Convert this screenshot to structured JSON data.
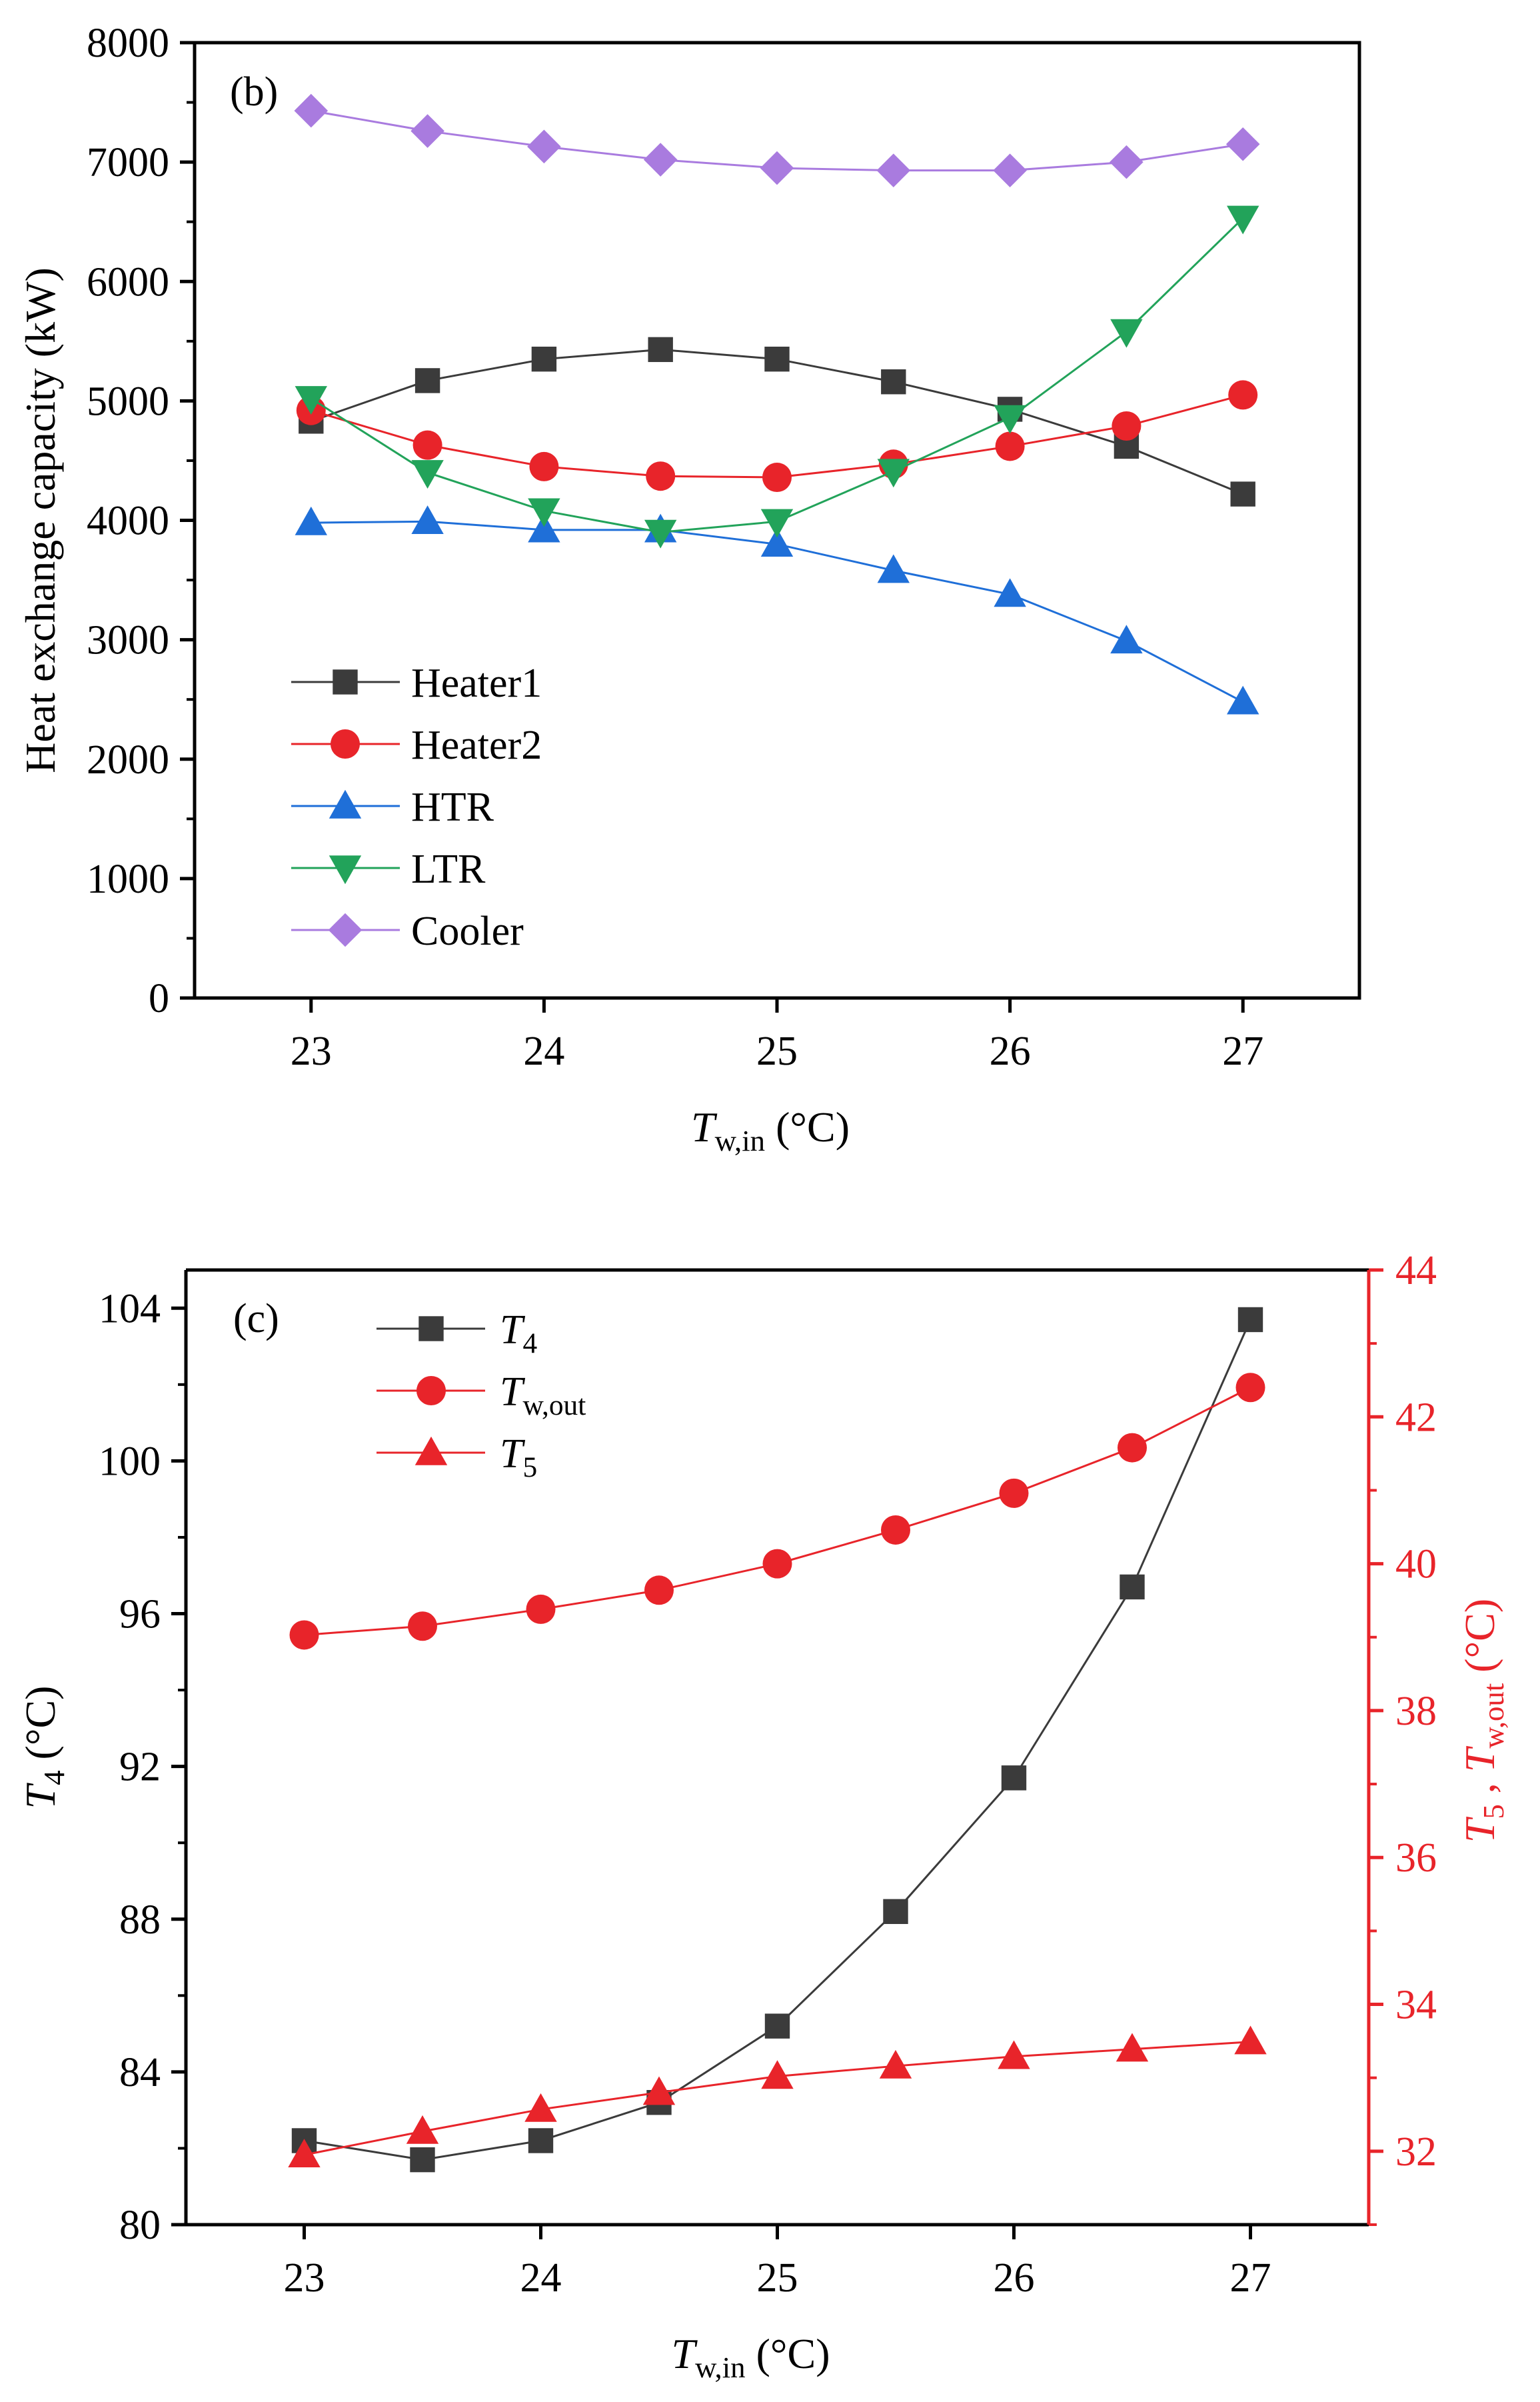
{
  "chart_data": [
    {
      "type": "line",
      "panel_label": "(b)",
      "xlabel_main": "T",
      "xlabel_sub": "w,in",
      "xlabel_unit": " (°C)",
      "ylabel": "Heat exchange capacity (kW)",
      "x": [
        23,
        23.5,
        24,
        24.5,
        25,
        25.5,
        26,
        26.5,
        27
      ],
      "xlim": [
        22.5,
        27.5
      ],
      "ylim": [
        0,
        8000
      ],
      "xticks": [
        23,
        24,
        25,
        26,
        27
      ],
      "yticks": [
        0,
        1000,
        2000,
        3000,
        4000,
        5000,
        6000,
        7000,
        8000
      ],
      "legend_position": "bottom-left",
      "series": [
        {
          "name": "Heater1",
          "color": "#3b3b3b",
          "marker": "square",
          "values": [
            4830,
            5170,
            5350,
            5430,
            5350,
            5160,
            4930,
            4620,
            4220
          ]
        },
        {
          "name": "Heater2",
          "color": "#e8242a",
          "marker": "circle",
          "values": [
            4920,
            4630,
            4450,
            4370,
            4360,
            4470,
            4620,
            4790,
            5050
          ]
        },
        {
          "name": "HTR",
          "color": "#1f6fd8",
          "marker": "triangle-up",
          "values": [
            3980,
            3990,
            3920,
            3920,
            3800,
            3580,
            3380,
            2990,
            2480
          ]
        },
        {
          "name": "LTR",
          "color": "#22a35a",
          "marker": "triangle-down",
          "values": [
            5020,
            4400,
            4080,
            3900,
            3990,
            4410,
            4860,
            5580,
            6530
          ]
        },
        {
          "name": "Cooler",
          "color": "#a97bdf",
          "marker": "diamond",
          "values": [
            7430,
            7260,
            7130,
            7020,
            6950,
            6930,
            6930,
            7000,
            7150
          ]
        }
      ]
    },
    {
      "type": "line",
      "panel_label": "(c)",
      "xlabel_main": "T",
      "xlabel_sub": "w,in",
      "xlabel_unit": " (°C)",
      "ylabel_left_main": "T",
      "ylabel_left_sub": "4",
      "ylabel_left_unit": " (°C)",
      "ylabel_right_main1": "T",
      "ylabel_right_sub1": "5",
      "ylabel_right_sep": " , ",
      "ylabel_right_main2": "T",
      "ylabel_right_sub2": "w,out",
      "ylabel_right_unit": " (°C)",
      "x": [
        23,
        23.5,
        24,
        24.5,
        25,
        25.5,
        26,
        26.5,
        27
      ],
      "xlim": [
        22.5,
        27.5
      ],
      "xticks": [
        23,
        24,
        25,
        26,
        27
      ],
      "ylim_left": [
        80,
        105
      ],
      "yticks_left": [
        80,
        84,
        88,
        92,
        96,
        100,
        104
      ],
      "ylim_right": [
        31,
        44
      ],
      "yticks_right": [
        32,
        34,
        36,
        38,
        40,
        42,
        44
      ],
      "right_axis_color": "#e8242a",
      "legend_position": "top-left",
      "series": [
        {
          "name_main": "T",
          "name_sub": "4",
          "axis": "left",
          "color": "#3b3b3b",
          "marker": "square",
          "values": [
            82.2,
            81.7,
            82.2,
            83.2,
            85.2,
            88.2,
            91.7,
            96.7,
            103.7
          ]
        },
        {
          "name_main": "T",
          "name_sub": "w,out",
          "axis": "right",
          "color": "#e8242a",
          "marker": "circle",
          "values": [
            39.03,
            39.15,
            39.38,
            39.64,
            40.0,
            40.46,
            40.96,
            41.58,
            42.4
          ]
        },
        {
          "name_main": "T",
          "name_sub": "5",
          "axis": "right",
          "color": "#e8242a",
          "marker": "triangle-up",
          "values": [
            31.95,
            32.27,
            32.57,
            32.8,
            33.02,
            33.16,
            33.29,
            33.39,
            33.49
          ]
        }
      ]
    }
  ]
}
